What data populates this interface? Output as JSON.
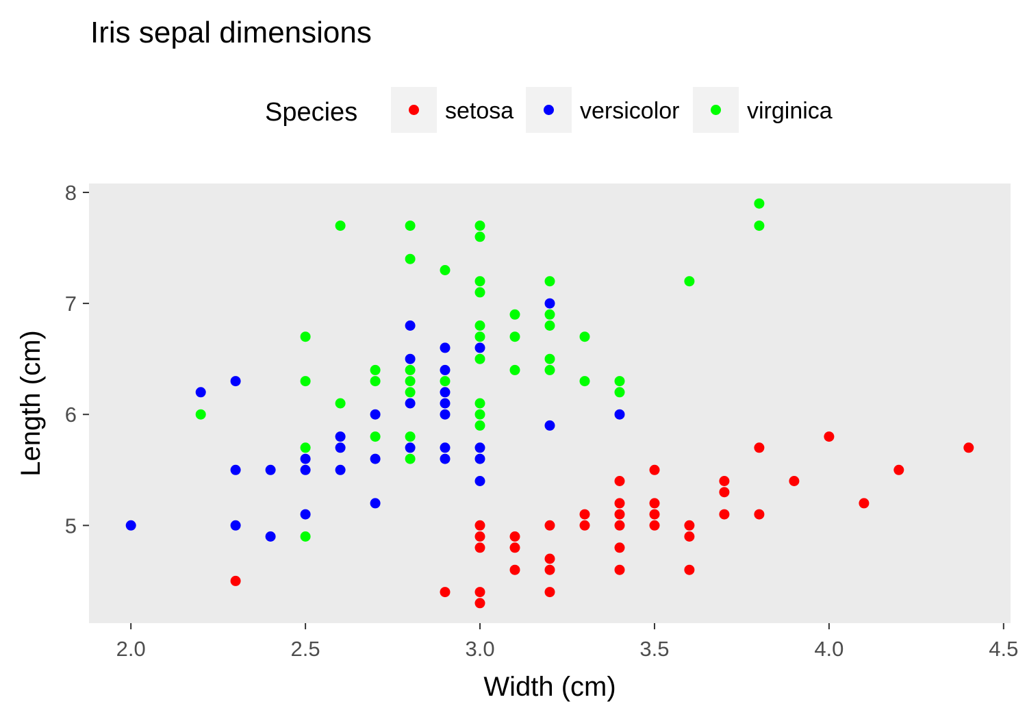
{
  "chart_data": {
    "type": "scatter",
    "title": "Iris sepal dimensions",
    "xlabel": "Width (cm)",
    "ylabel": "Length (cm)",
    "xlim": [
      1.88,
      4.52
    ],
    "ylim": [
      4.12,
      8.08
    ],
    "x_ticks": [
      "2.0",
      "2.5",
      "3.0",
      "3.5",
      "4.0",
      "4.5"
    ],
    "y_ticks": [
      "5",
      "6",
      "7",
      "8"
    ],
    "grid": false,
    "panel_background": "#ebebeb",
    "legend": {
      "title": "Species",
      "position": "top",
      "key_background": "#f2f2f2"
    },
    "series": [
      {
        "name": "setosa",
        "color": "#ff0000",
        "points": [
          [
            2.3,
            4.5
          ],
          [
            2.9,
            4.4
          ],
          [
            3.0,
            4.4
          ],
          [
            3.0,
            4.3
          ],
          [
            3.0,
            4.8
          ],
          [
            3.0,
            4.9
          ],
          [
            3.0,
            5.0
          ],
          [
            3.1,
            4.6
          ],
          [
            3.1,
            4.8
          ],
          [
            3.1,
            4.9
          ],
          [
            3.2,
            4.4
          ],
          [
            3.2,
            4.6
          ],
          [
            3.2,
            4.7
          ],
          [
            3.2,
            5.0
          ],
          [
            3.3,
            5.0
          ],
          [
            3.3,
            5.1
          ],
          [
            3.4,
            4.6
          ],
          [
            3.4,
            4.8
          ],
          [
            3.4,
            5.0
          ],
          [
            3.4,
            5.1
          ],
          [
            3.4,
            5.2
          ],
          [
            3.4,
            5.4
          ],
          [
            3.5,
            5.0
          ],
          [
            3.5,
            5.1
          ],
          [
            3.5,
            5.2
          ],
          [
            3.5,
            5.5
          ],
          [
            3.6,
            4.6
          ],
          [
            3.6,
            4.9
          ],
          [
            3.6,
            5.0
          ],
          [
            3.7,
            5.1
          ],
          [
            3.7,
            5.3
          ],
          [
            3.7,
            5.4
          ],
          [
            3.8,
            5.1
          ],
          [
            3.8,
            5.7
          ],
          [
            3.9,
            5.4
          ],
          [
            4.0,
            5.8
          ],
          [
            4.1,
            5.2
          ],
          [
            4.2,
            5.5
          ],
          [
            4.4,
            5.7
          ]
        ]
      },
      {
        "name": "versicolor",
        "color": "#0000ff",
        "points": [
          [
            2.0,
            5.0
          ],
          [
            2.2,
            6.2
          ],
          [
            2.3,
            5.0
          ],
          [
            2.3,
            5.5
          ],
          [
            2.3,
            6.3
          ],
          [
            2.4,
            4.9
          ],
          [
            2.4,
            5.5
          ],
          [
            2.5,
            5.1
          ],
          [
            2.5,
            5.5
          ],
          [
            2.5,
            5.6
          ],
          [
            2.6,
            5.5
          ],
          [
            2.6,
            5.7
          ],
          [
            2.6,
            5.8
          ],
          [
            2.7,
            5.2
          ],
          [
            2.7,
            5.6
          ],
          [
            2.7,
            6.0
          ],
          [
            2.8,
            5.7
          ],
          [
            2.8,
            6.1
          ],
          [
            2.8,
            6.5
          ],
          [
            2.8,
            6.8
          ],
          [
            2.9,
            5.6
          ],
          [
            2.9,
            5.7
          ],
          [
            2.9,
            6.0
          ],
          [
            2.9,
            6.1
          ],
          [
            2.9,
            6.2
          ],
          [
            2.9,
            6.4
          ],
          [
            2.9,
            6.6
          ],
          [
            3.0,
            5.4
          ],
          [
            3.0,
            5.6
          ],
          [
            3.0,
            5.7
          ],
          [
            3.0,
            6.6
          ],
          [
            3.2,
            5.9
          ],
          [
            3.2,
            7.0
          ],
          [
            3.4,
            6.0
          ]
        ]
      },
      {
        "name": "virginica",
        "color": "#00ff00",
        "points": [
          [
            2.2,
            6.0
          ],
          [
            2.5,
            4.9
          ],
          [
            2.5,
            5.7
          ],
          [
            2.5,
            6.3
          ],
          [
            2.5,
            6.7
          ],
          [
            2.6,
            6.1
          ],
          [
            2.6,
            7.7
          ],
          [
            2.7,
            5.8
          ],
          [
            2.7,
            6.3
          ],
          [
            2.7,
            6.4
          ],
          [
            2.8,
            5.6
          ],
          [
            2.8,
            5.8
          ],
          [
            2.8,
            6.2
          ],
          [
            2.8,
            6.3
          ],
          [
            2.8,
            6.4
          ],
          [
            2.8,
            7.4
          ],
          [
            2.8,
            7.7
          ],
          [
            2.9,
            6.3
          ],
          [
            2.9,
            7.3
          ],
          [
            3.0,
            5.9
          ],
          [
            3.0,
            6.0
          ],
          [
            3.0,
            6.1
          ],
          [
            3.0,
            6.5
          ],
          [
            3.0,
            6.7
          ],
          [
            3.0,
            6.8
          ],
          [
            3.0,
            7.1
          ],
          [
            3.0,
            7.2
          ],
          [
            3.0,
            7.6
          ],
          [
            3.0,
            7.7
          ],
          [
            3.1,
            6.4
          ],
          [
            3.1,
            6.7
          ],
          [
            3.1,
            6.9
          ],
          [
            3.2,
            6.4
          ],
          [
            3.2,
            6.5
          ],
          [
            3.2,
            6.8
          ],
          [
            3.2,
            6.9
          ],
          [
            3.2,
            7.2
          ],
          [
            3.3,
            6.3
          ],
          [
            3.3,
            6.7
          ],
          [
            3.4,
            6.2
          ],
          [
            3.4,
            6.3
          ],
          [
            3.6,
            7.2
          ],
          [
            3.8,
            7.7
          ],
          [
            3.8,
            7.9
          ]
        ]
      }
    ]
  }
}
